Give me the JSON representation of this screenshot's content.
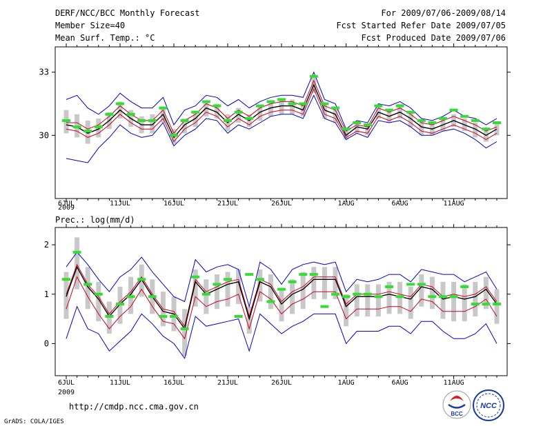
{
  "header": {
    "left_line1": "DERF/NCC/BCC Monthly Forecast",
    "left_line2": "Member Size=40",
    "left_line3": "Mean Surf. Temp.: °C",
    "right_line1": "For 2009/07/06-2009/08/14",
    "right_line2": "Fcst Started Refer Date 2009/07/05",
    "right_line3": "Fcst Produced Date 2009/07/06"
  },
  "footer": {
    "url": "http://cmdp.ncc.cma.gov.cn",
    "credit": "GrADS: COLA/IGES",
    "logo_bcc": "BCC",
    "logo_ncc": "NCC"
  },
  "colors": {
    "envelope": "#0000cc",
    "mean": "#000000",
    "spread": "#cc0022",
    "box": "#c8c8c8",
    "obs": "#33dd33"
  },
  "chart_data": [
    {
      "type": "line",
      "title": "Mean Surf. Temp.: °C",
      "ylabel": "°C",
      "ylim": [
        27,
        34.2
      ],
      "yticks": [
        30,
        33
      ],
      "x_tick_labels": [
        "6JUL",
        "11JUL",
        "16JUL",
        "21JUL",
        "26JUL",
        "1AUG",
        "6AUG",
        "11AUG"
      ],
      "x_tick_days": [
        0,
        5,
        10,
        15,
        20,
        26,
        31,
        36
      ],
      "x_year_label": "2009",
      "series": [
        {
          "name": "ensemble max",
          "values": [
            31.7,
            31.9,
            31.3,
            31.0,
            31.4,
            32.0,
            31.6,
            31.3,
            31.3,
            31.8,
            30.5,
            31.2,
            31.4,
            31.9,
            31.8,
            31.4,
            31.7,
            31.3,
            31.6,
            31.8,
            31.9,
            31.9,
            31.8,
            33.0,
            31.7,
            31.5,
            30.3,
            30.7,
            30.6,
            31.5,
            31.4,
            31.6,
            31.3,
            30.8,
            30.7,
            30.9,
            31.2,
            30.9,
            30.8,
            30.5,
            30.8
          ]
        },
        {
          "name": "ensemble upper",
          "values": [
            30.6,
            30.6,
            30.3,
            30.5,
            30.9,
            31.4,
            31.0,
            30.7,
            30.7,
            31.2,
            30.1,
            30.7,
            31.0,
            31.5,
            31.3,
            30.8,
            31.2,
            30.9,
            31.3,
            31.5,
            31.6,
            31.6,
            31.4,
            32.6,
            31.4,
            31.2,
            30.2,
            30.5,
            30.4,
            31.3,
            31.1,
            31.3,
            31.0,
            30.6,
            30.5,
            30.7,
            30.9,
            30.7,
            30.5,
            30.2,
            30.4
          ]
        },
        {
          "name": "ensemble mean",
          "values": [
            30.5,
            30.4,
            30.1,
            30.3,
            30.7,
            31.2,
            30.8,
            30.5,
            30.5,
            31.0,
            29.9,
            30.5,
            30.8,
            31.3,
            31.1,
            30.6,
            31.0,
            30.7,
            31.1,
            31.3,
            31.4,
            31.4,
            31.2,
            32.4,
            31.2,
            31.0,
            30.0,
            30.4,
            30.3,
            31.1,
            30.9,
            31.1,
            30.8,
            30.4,
            30.3,
            30.5,
            30.7,
            30.5,
            30.3,
            30.0,
            30.3
          ]
        },
        {
          "name": "ensemble lower",
          "values": [
            30.3,
            30.2,
            29.9,
            30.1,
            30.5,
            31.0,
            30.6,
            30.3,
            30.3,
            30.8,
            29.7,
            30.3,
            30.6,
            31.1,
            30.9,
            30.4,
            30.8,
            30.5,
            30.9,
            31.1,
            31.2,
            31.2,
            31.0,
            32.2,
            31.0,
            30.8,
            29.9,
            30.2,
            30.1,
            30.9,
            30.7,
            30.9,
            30.6,
            30.2,
            30.1,
            30.3,
            30.5,
            30.3,
            30.1,
            29.8,
            30.1
          ]
        },
        {
          "name": "ensemble min",
          "values": [
            28.9,
            28.8,
            28.7,
            29.4,
            29.9,
            30.5,
            30.1,
            29.9,
            30.0,
            30.6,
            29.5,
            30.0,
            30.3,
            30.8,
            30.7,
            30.1,
            30.5,
            30.3,
            30.6,
            30.9,
            31.0,
            31.0,
            30.8,
            31.9,
            30.8,
            30.6,
            29.8,
            30.1,
            29.9,
            30.7,
            30.6,
            30.7,
            30.4,
            30.0,
            30.0,
            30.2,
            30.3,
            30.1,
            29.8,
            29.4,
            29.7
          ]
        },
        {
          "name": "box upper",
          "values": [
            31.2,
            31.0,
            30.7,
            30.8,
            31.1,
            31.6,
            31.2,
            30.9,
            31.0,
            31.3,
            30.3,
            30.8,
            31.1,
            31.6,
            31.5,
            31.0,
            31.3,
            31.0,
            31.4,
            31.6,
            31.7,
            31.7,
            31.5,
            32.8,
            31.5,
            31.3,
            30.3,
            30.6,
            30.5,
            31.4,
            31.2,
            31.5,
            31.1,
            30.7,
            30.6,
            30.8,
            31.0,
            30.8,
            30.6,
            30.3,
            30.6
          ]
        },
        {
          "name": "box lower",
          "values": [
            30.1,
            29.9,
            29.6,
            29.9,
            30.3,
            30.8,
            30.4,
            30.1,
            30.1,
            30.6,
            29.6,
            30.1,
            30.4,
            30.9,
            30.8,
            30.2,
            30.6,
            30.4,
            30.7,
            30.9,
            31.0,
            31.0,
            30.9,
            32.0,
            30.8,
            30.6,
            29.8,
            30.1,
            30.0,
            30.8,
            30.6,
            30.8,
            30.4,
            30.0,
            30.0,
            30.2,
            30.4,
            30.2,
            29.9,
            29.7,
            30.0
          ]
        },
        {
          "name": "observed",
          "values": [
            30.7,
            30.4,
            30.2,
            30.4,
            31.0,
            31.5,
            31.0,
            30.7,
            30.7,
            31.3,
            30.0,
            30.7,
            31.1,
            31.6,
            31.4,
            30.7,
            31.1,
            30.8,
            31.4,
            31.6,
            31.7,
            31.5,
            31.5,
            32.8,
            31.5,
            31.3,
            30.3,
            30.6,
            30.5,
            31.4,
            31.2,
            31.4,
            31.1,
            30.7,
            30.6,
            30.8,
            31.2,
            30.9,
            30.7,
            30.3,
            30.6
          ]
        }
      ]
    },
    {
      "type": "line",
      "title": "Prec.: log(mm/d)",
      "ylabel": "log(mm/d)",
      "ylim": [
        -0.65,
        2.35
      ],
      "yticks": [
        0,
        1,
        2
      ],
      "x_tick_labels": [
        "6JUL",
        "11JUL",
        "16JUL",
        "21JUL",
        "26JUL",
        "1AUG",
        "6AUG",
        "11AUG"
      ],
      "x_tick_days": [
        0,
        5,
        10,
        15,
        20,
        26,
        31,
        36
      ],
      "x_year_label": "2009",
      "series": [
        {
          "name": "ensemble max",
          "values": [
            1.55,
            1.85,
            1.6,
            1.3,
            1.05,
            1.35,
            1.5,
            1.75,
            1.45,
            1.2,
            0.95,
            0.85,
            1.7,
            1.45,
            1.55,
            1.6,
            1.5,
            0.75,
            1.65,
            1.5,
            1.2,
            1.5,
            1.6,
            1.65,
            1.6,
            1.65,
            1.05,
            1.3,
            1.25,
            1.3,
            1.4,
            1.4,
            1.25,
            1.5,
            1.45,
            1.4,
            1.4,
            1.25,
            1.35,
            1.45,
            1.1
          ]
        },
        {
          "name": "ensemble upper",
          "values": [
            1.0,
            1.6,
            1.2,
            0.95,
            0.6,
            0.85,
            1.05,
            1.35,
            1.0,
            0.7,
            0.65,
            0.35,
            1.3,
            1.05,
            1.15,
            1.25,
            1.3,
            0.55,
            1.3,
            1.2,
            0.85,
            1.05,
            1.15,
            1.35,
            1.35,
            1.35,
            0.8,
            1.0,
            1.0,
            1.0,
            1.05,
            1.0,
            0.95,
            1.2,
            1.15,
            0.95,
            1.0,
            0.95,
            1.0,
            1.15,
            0.85
          ]
        },
        {
          "name": "ensemble mean",
          "values": [
            0.95,
            1.55,
            1.15,
            0.9,
            0.55,
            0.8,
            1.0,
            1.3,
            0.95,
            0.65,
            0.6,
            0.3,
            1.25,
            1.0,
            1.1,
            1.2,
            1.25,
            0.5,
            1.25,
            1.15,
            0.8,
            1.0,
            1.1,
            1.3,
            1.3,
            1.3,
            0.75,
            0.95,
            0.95,
            0.95,
            1.0,
            0.95,
            0.9,
            1.15,
            1.1,
            0.9,
            0.95,
            0.9,
            0.95,
            1.1,
            0.8
          ]
        },
        {
          "name": "ensemble lower",
          "values": [
            0.7,
            1.35,
            0.95,
            0.6,
            0.3,
            0.55,
            0.75,
            1.1,
            0.75,
            0.45,
            0.4,
            0.1,
            0.95,
            0.75,
            0.85,
            0.9,
            1.0,
            0.3,
            1.05,
            0.9,
            0.6,
            0.8,
            0.9,
            1.05,
            1.05,
            1.05,
            0.5,
            0.7,
            0.7,
            0.7,
            0.75,
            0.75,
            0.65,
            0.9,
            0.85,
            0.65,
            0.65,
            0.65,
            0.75,
            0.9,
            0.55
          ]
        },
        {
          "name": "ensemble min",
          "values": [
            0.1,
            0.75,
            0.3,
            0.2,
            -0.15,
            0.05,
            0.25,
            0.6,
            0.4,
            0.15,
            0.0,
            -0.3,
            0.55,
            0.35,
            0.4,
            0.45,
            0.5,
            -0.15,
            0.6,
            0.4,
            0.2,
            0.35,
            0.45,
            0.6,
            0.6,
            0.6,
            0.0,
            0.25,
            0.25,
            0.25,
            0.35,
            0.35,
            0.2,
            0.45,
            0.45,
            0.25,
            0.1,
            0.1,
            0.2,
            0.4,
            0.0
          ]
        },
        {
          "name": "box upper",
          "values": [
            1.45,
            2.15,
            1.55,
            1.25,
            0.85,
            1.15,
            1.35,
            1.6,
            1.3,
            1.05,
            0.95,
            0.7,
            1.5,
            1.3,
            1.4,
            1.45,
            1.5,
            0.75,
            1.5,
            1.4,
            1.1,
            1.3,
            1.45,
            1.55,
            1.55,
            1.55,
            1.0,
            1.2,
            1.2,
            1.2,
            1.25,
            1.25,
            1.15,
            1.4,
            1.35,
            1.25,
            1.25,
            1.2,
            1.25,
            1.35,
            1.1
          ]
        },
        {
          "name": "box lower",
          "values": [
            0.5,
            1.1,
            0.7,
            0.45,
            0.2,
            0.4,
            0.6,
            0.95,
            0.6,
            0.35,
            0.25,
            -0.25,
            0.75,
            0.6,
            0.7,
            0.75,
            0.8,
            0.2,
            0.85,
            0.7,
            0.45,
            0.6,
            0.7,
            0.9,
            0.9,
            0.9,
            0.35,
            0.55,
            0.55,
            0.55,
            0.6,
            0.6,
            0.5,
            0.75,
            0.7,
            0.5,
            0.45,
            0.45,
            0.55,
            0.7,
            0.4
          ]
        },
        {
          "name": "observed",
          "values": [
            1.3,
            1.85,
            1.2,
            1.0,
            0.55,
            0.8,
            0.95,
            1.3,
            0.95,
            0.55,
            0.55,
            0.3,
            1.35,
            1.0,
            1.2,
            1.3,
            0.55,
            1.4,
            1.3,
            0.85,
            1.1,
            1.25,
            1.4,
            1.4,
            0.75,
            1.0,
            0.95,
            1.0,
            1.0,
            0.95,
            1.15,
            0.95,
            1.2,
            1.2,
            0.95,
            0.95,
            0.95,
            1.15,
            0.8,
            0.8,
            0.8
          ]
        }
      ]
    }
  ]
}
